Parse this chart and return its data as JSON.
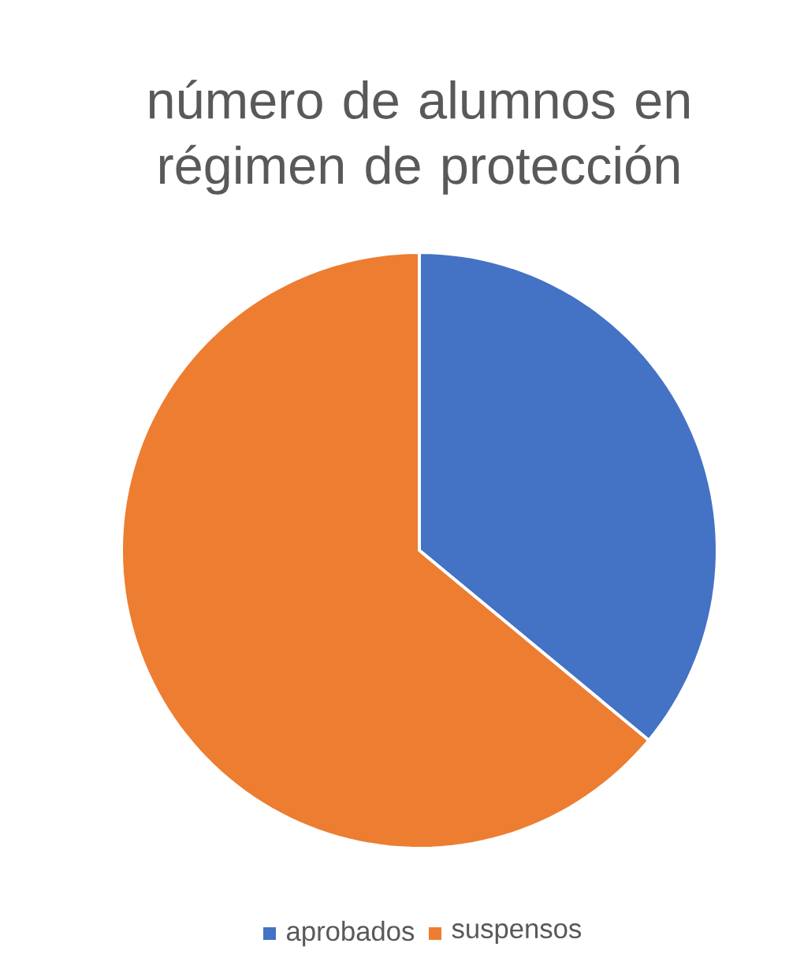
{
  "chart_data": {
    "type": "pie",
    "title": "número de alumnos en régimen de protección",
    "categories": [
      "aprobados",
      "suspensos"
    ],
    "values": [
      36,
      64
    ],
    "colors": [
      "#4472c4",
      "#ed7d31"
    ],
    "legend": "bottom"
  }
}
